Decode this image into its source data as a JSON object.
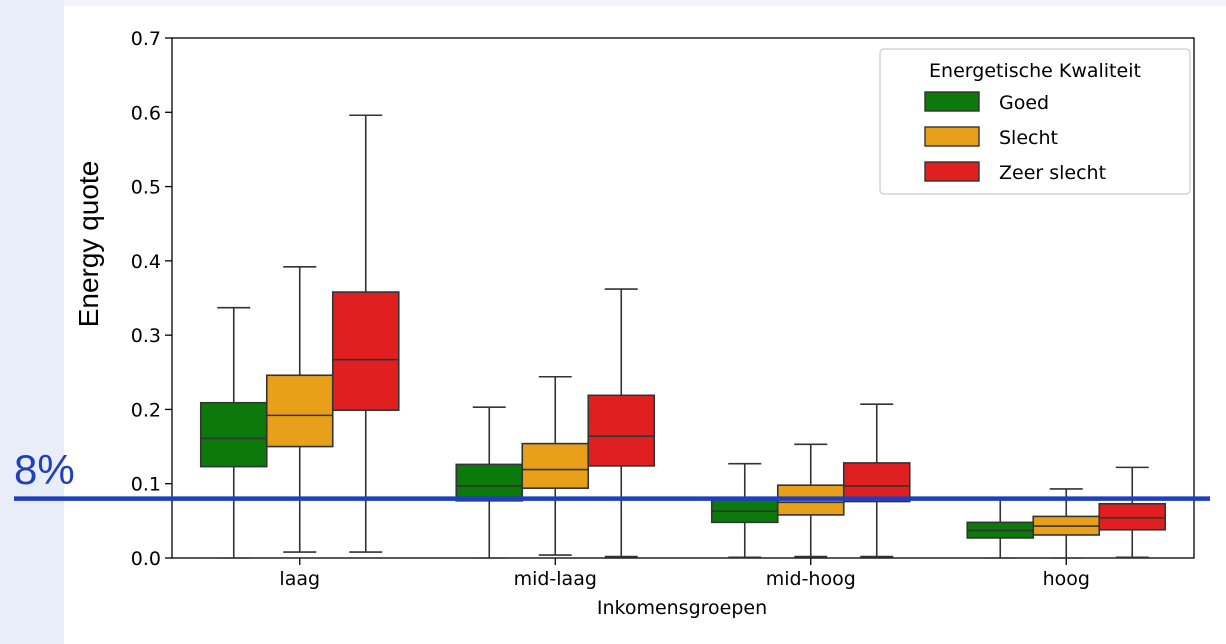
{
  "chart_data": {
    "type": "box",
    "xlabel": "Inkomensgroepen",
    "ylabel": "Energy quote",
    "ylim": [
      0,
      0.7
    ],
    "yticks": [
      "0.0",
      "0.1",
      "0.2",
      "0.3",
      "0.4",
      "0.5",
      "0.6",
      "0.7"
    ],
    "categories": [
      "laag",
      "mid-laag",
      "mid-hoog",
      "hoog"
    ],
    "legend": {
      "title": "Energetische Kwaliteit",
      "placement": "top-right"
    },
    "series": [
      {
        "name": "Goed",
        "color": "#0b7a0b",
        "boxes": [
          {
            "whisker_low": 0.0,
            "q1": 0.123,
            "median": 0.161,
            "q3": 0.209,
            "whisker_high": 0.337
          },
          {
            "whisker_low": 0.0,
            "q1": 0.077,
            "median": 0.097,
            "q3": 0.126,
            "whisker_high": 0.203
          },
          {
            "whisker_low": 0.001,
            "q1": 0.048,
            "median": 0.063,
            "q3": 0.081,
            "whisker_high": 0.127
          },
          {
            "whisker_low": 0.0,
            "q1": 0.027,
            "median": 0.037,
            "q3": 0.048,
            "whisker_high": 0.08
          }
        ]
      },
      {
        "name": "Slecht",
        "color": "#e8a01a",
        "boxes": [
          {
            "whisker_low": 0.008,
            "q1": 0.15,
            "median": 0.192,
            "q3": 0.246,
            "whisker_high": 0.392
          },
          {
            "whisker_low": 0.004,
            "q1": 0.094,
            "median": 0.119,
            "q3": 0.154,
            "whisker_high": 0.244
          },
          {
            "whisker_low": 0.002,
            "q1": 0.058,
            "median": 0.075,
            "q3": 0.098,
            "whisker_high": 0.153
          },
          {
            "whisker_low": 0.0,
            "q1": 0.031,
            "median": 0.043,
            "q3": 0.056,
            "whisker_high": 0.093
          }
        ]
      },
      {
        "name": "Zeer slecht",
        "color": "#e02020",
        "boxes": [
          {
            "whisker_low": 0.008,
            "q1": 0.199,
            "median": 0.267,
            "q3": 0.358,
            "whisker_high": 0.596
          },
          {
            "whisker_low": 0.002,
            "q1": 0.124,
            "median": 0.164,
            "q3": 0.219,
            "whisker_high": 0.362
          },
          {
            "whisker_low": 0.002,
            "q1": 0.076,
            "median": 0.097,
            "q3": 0.128,
            "whisker_high": 0.207
          },
          {
            "whisker_low": 0.001,
            "q1": 0.038,
            "median": 0.054,
            "q3": 0.073,
            "whisker_high": 0.122
          }
        ]
      }
    ],
    "reference_line": {
      "value": 0.08,
      "label": "8%",
      "color": "#1f3fbf"
    }
  }
}
